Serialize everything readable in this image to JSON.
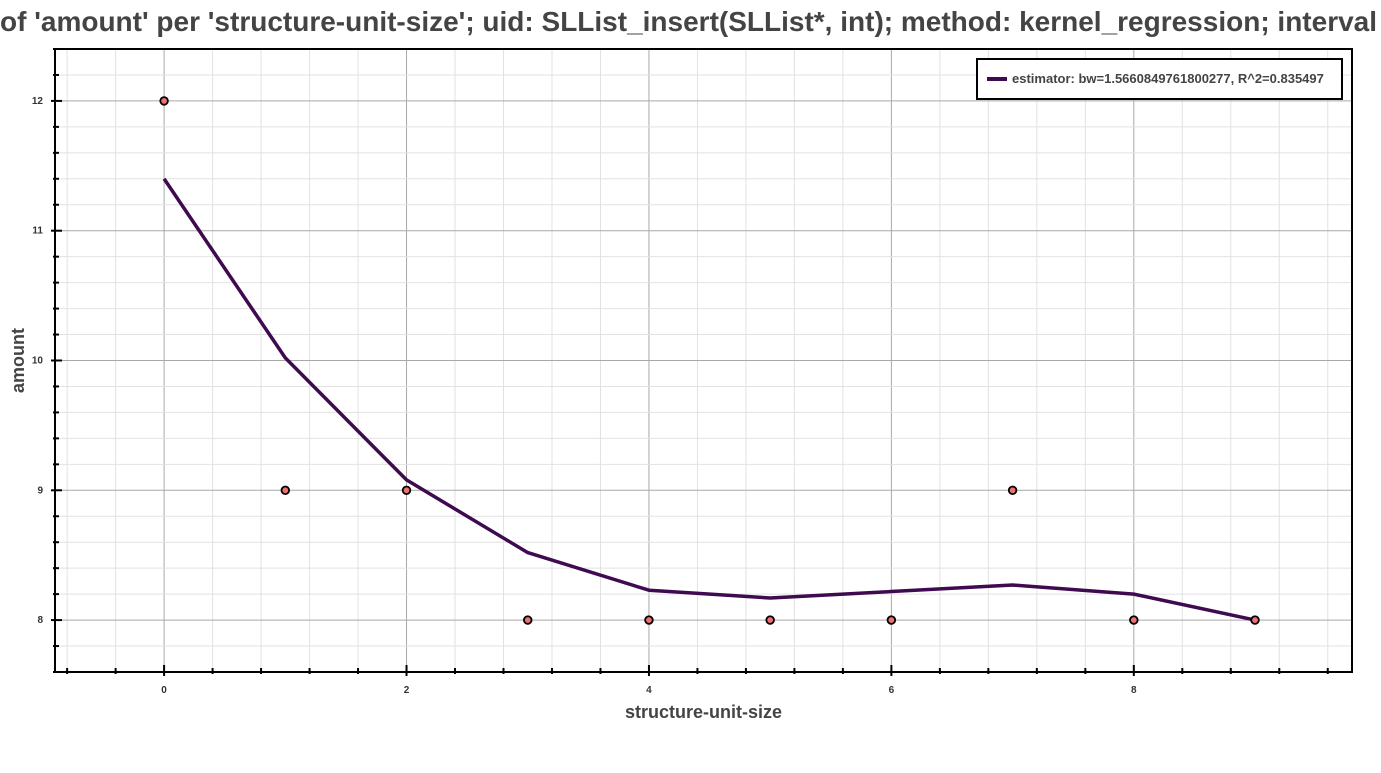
{
  "chart_data": {
    "type": "scatter",
    "title": "of 'amount' per 'structure-unit-size'; uid: SLList_insert(SLList*, int); method: kernel_regression; interval",
    "xlabel": "structure-unit-size",
    "ylabel": "amount",
    "xlim": [
      -0.9,
      9.8
    ],
    "ylim": [
      7.6,
      12.4
    ],
    "x_ticks": [
      0,
      2,
      4,
      6,
      8
    ],
    "y_ticks": [
      8,
      9,
      10,
      11,
      12
    ],
    "grid": true,
    "legend_position": "top-right",
    "series": [
      {
        "name": "estimator: bw=1.5660849761800277, R^2=0.835497",
        "kind": "line",
        "color": "#3f0a4f",
        "x": [
          0,
          1,
          2,
          3,
          4,
          5,
          6,
          7,
          8,
          9
        ],
        "y": [
          11.4,
          10.02,
          9.08,
          8.52,
          8.23,
          8.17,
          8.22,
          8.27,
          8.2,
          8.0
        ]
      },
      {
        "kind": "scatter",
        "color": "#f07070",
        "x": [
          0,
          1,
          2,
          3,
          4,
          5,
          6,
          7,
          8,
          9
        ],
        "y": [
          12,
          9,
          9,
          8,
          8,
          8,
          8,
          9,
          8,
          8
        ]
      }
    ]
  }
}
